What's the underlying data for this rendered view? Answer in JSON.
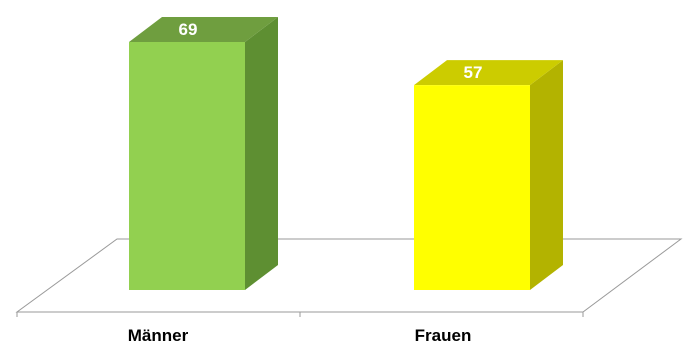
{
  "chart_data": {
    "type": "bar",
    "categories": [
      "Männer",
      "Frauen"
    ],
    "values": [
      69,
      57
    ],
    "value_labels": [
      "69",
      "57"
    ],
    "title": "",
    "xlabel": "",
    "ylabel": "",
    "ylim": [
      0,
      69
    ],
    "grid": false,
    "legend": "none",
    "style": "3d",
    "colors": [
      {
        "front": "#92d050",
        "side": "#5e8f32",
        "top": "#6f9e3f"
      },
      {
        "front": "#ffff00",
        "side": "#b3b300",
        "top": "#cccc00"
      }
    ]
  }
}
